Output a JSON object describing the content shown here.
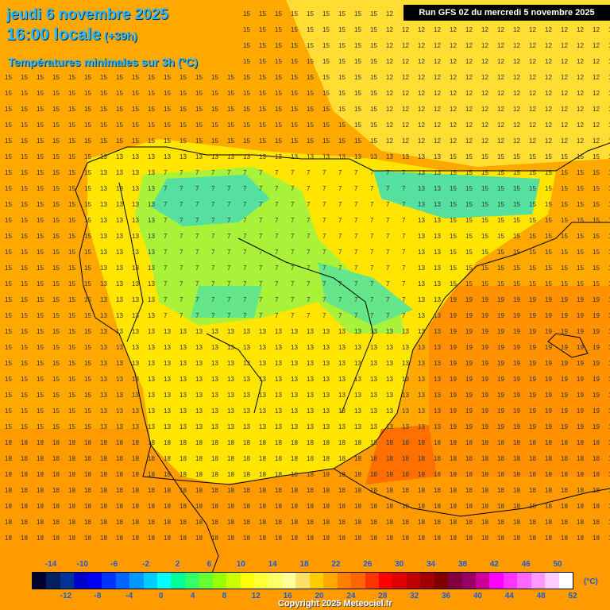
{
  "header": {
    "date": "jeudi 6 novembre 2025",
    "time": "16:00 locale",
    "offset": "(+39h)",
    "subtitle": "Températures minimales sur 3h (°C)",
    "run": "Run GFS 0Z du mercredi 5 novembre 2025"
  },
  "legend": {
    "unit": "(°C)",
    "labels_top": [
      "-14",
      "-10",
      "-6",
      "-2",
      "2",
      "6",
      "10",
      "14",
      "18",
      "22",
      "26",
      "30",
      "34",
      "38",
      "42",
      "46",
      "50"
    ],
    "labels_bottom": [
      "-12",
      "-8",
      "-4",
      "0",
      "4",
      "8",
      "12",
      "16",
      "20",
      "24",
      "28",
      "32",
      "36",
      "40",
      "44",
      "48",
      "52"
    ],
    "colors": [
      "#000033",
      "#002060",
      "#003399",
      "#0000cc",
      "#0000ff",
      "#0033ff",
      "#0066ff",
      "#0099ff",
      "#00ccff",
      "#00ffff",
      "#00ff99",
      "#33ff66",
      "#66ff33",
      "#99ff00",
      "#ccff00",
      "#ffff00",
      "#ffff33",
      "#ffff66",
      "#ffff99",
      "#ffe066",
      "#ffcc00",
      "#ffa800",
      "#ff8000",
      "#ff6600",
      "#ff3300",
      "#ff0000",
      "#e00000",
      "#c00000",
      "#a00000",
      "#800000",
      "#800040",
      "#990066",
      "#cc0099",
      "#ff00ff",
      "#ff33ff",
      "#ff66ff",
      "#ff99ff",
      "#ffccff",
      "#ffffff"
    ]
  },
  "copyright": "Copyright 2025 Meteociel.fr"
}
